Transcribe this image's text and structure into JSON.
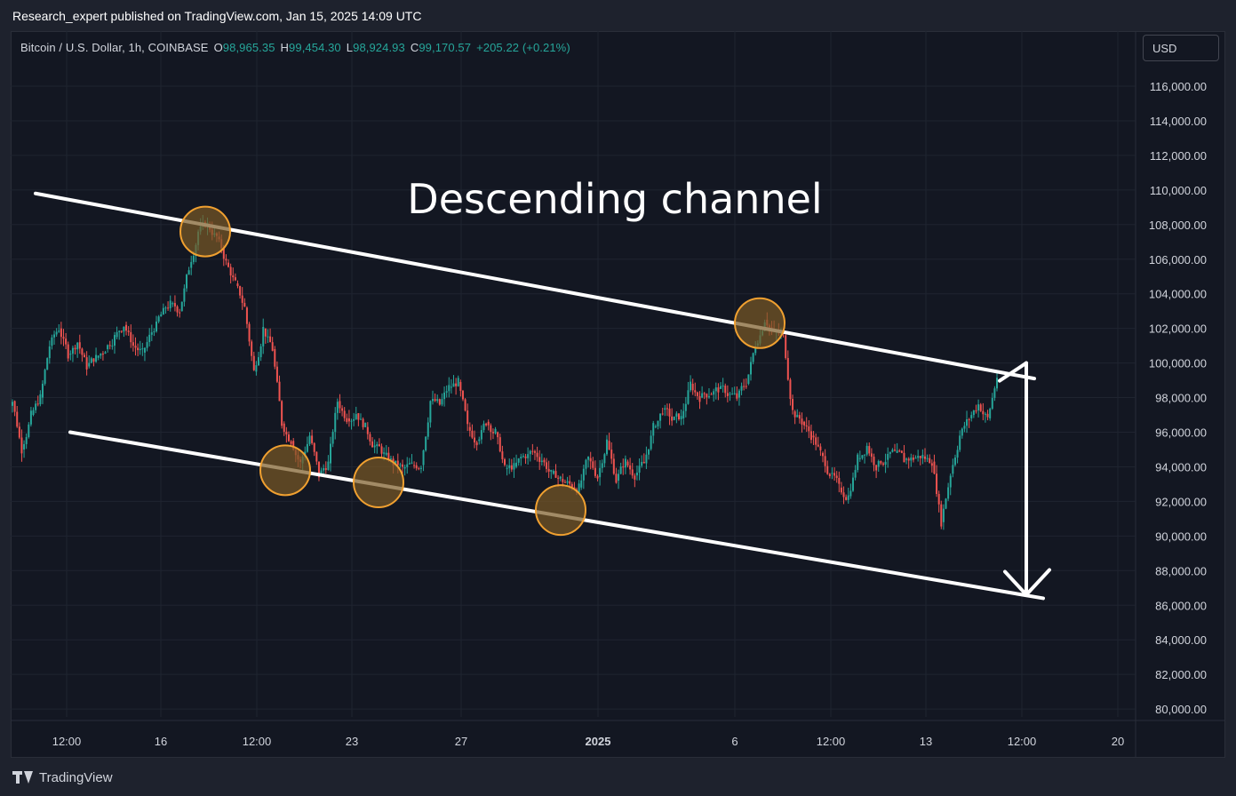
{
  "header": {
    "text": "Research_expert published on TradingView.com, Jan 15, 2025 14:09 UTC"
  },
  "legend": {
    "symbol": "Bitcoin / U.S. Dollar, 1h, COINBASE",
    "open_label": "O",
    "open": "98,965.35",
    "high_label": "H",
    "high": "99,454.30",
    "low_label": "L",
    "low": "98,924.93",
    "close_label": "C",
    "close": "99,170.57",
    "change": "+205.22 (+0.21%)"
  },
  "currency_button": {
    "label": "USD"
  },
  "footer": {
    "brand": "TradingView"
  },
  "colors": {
    "background": "#131722",
    "frame": "#1e222d",
    "up": "#26a69a",
    "down": "#ef5350",
    "channel": "#ffffff",
    "highlight_fill": "#7a5a25",
    "highlight_stroke": "#f0a030",
    "axis_text": "#d1d4dc"
  },
  "chart_data": {
    "type": "line",
    "title": "",
    "annotation": "Descending channel",
    "ylim": [
      79000,
      117200
    ],
    "y_ticks": [
      "116,000.00",
      "114,000.00",
      "112,000.00",
      "110,000.00",
      "108,000.00",
      "106,000.00",
      "104,000.00",
      "102,000.00",
      "100,000.00",
      "98,000.00",
      "96,000.00",
      "94,000.00",
      "92,000.00",
      "90,000.00",
      "88,000.00",
      "86,000.00",
      "84,000.00",
      "82,000.00",
      "80,000.00"
    ],
    "x_ticks": [
      "12:00",
      "16",
      "12:00",
      "23",
      "27",
      "2025",
      "6",
      "12:00",
      "13",
      "12:00",
      "20"
    ],
    "x_tick_bold": [
      "2025"
    ],
    "series": [
      {
        "values": [
          97800,
          95000,
          97000,
          98000,
          101000,
          102000,
          100500,
          101200,
          99800,
          100300,
          100800,
          101500,
          102200,
          101000,
          100600,
          101800,
          102800,
          103400,
          103000,
          105500,
          107600,
          108000,
          107300,
          105800,
          104600,
          103200,
          99500,
          102000,
          100800,
          96500,
          95500,
          94200,
          95800,
          93500,
          94200,
          97800,
          96800,
          97100,
          96300,
          95200,
          94700,
          94200,
          93900,
          94100,
          94100,
          97800,
          97600,
          98600,
          98900,
          96300,
          95500,
          96600,
          96000,
          93900,
          94000,
          94600,
          94900,
          94400,
          93600,
          93300,
          93000,
          92800,
          94500,
          93400,
          95500,
          93200,
          94300,
          93500,
          94200,
          96300,
          97300,
          96700,
          96800,
          98800,
          98000,
          98200,
          98500,
          98200,
          98000,
          98800,
          101000,
          102500,
          101800,
          101600,
          97200,
          96600,
          95800,
          94800,
          93600,
          92800,
          92300,
          94500,
          95200,
          94000,
          94400,
          94800,
          94400,
          94500,
          94600,
          94300,
          90800,
          93600,
          95800,
          96800,
          97600,
          96800,
          99200
        ]
      }
    ],
    "channel_upper": [
      108300,
      99100
    ],
    "channel_lower": [
      95800,
      86400
    ],
    "highlights": [
      "top",
      "bottom",
      "bottom",
      "bottom",
      "top"
    ],
    "measure_arrow": [
      100000,
      86400
    ]
  }
}
